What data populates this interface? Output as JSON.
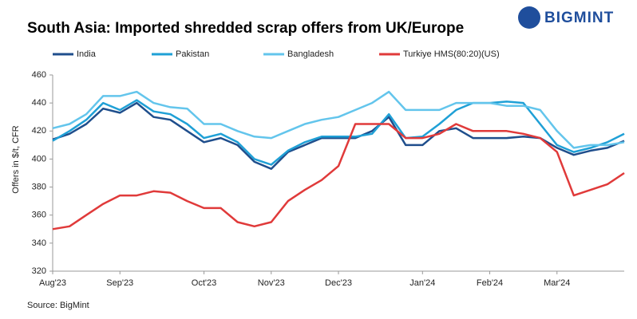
{
  "chart_data": {
    "type": "line",
    "title": "South Asia: Imported shredded scrap offers from UK/Europe",
    "logo": "BIGMINT",
    "y_label": "Offers in $/t, CFR",
    "source": "Source: BigMint",
    "categories": [
      "Aug'23",
      null,
      null,
      null,
      "Sep'23",
      null,
      null,
      null,
      null,
      "Oct'23",
      null,
      null,
      null,
      "Nov'23",
      null,
      null,
      null,
      "Dec'23",
      null,
      null,
      null,
      null,
      "Jan'24",
      null,
      null,
      null,
      "Feb'24",
      null,
      null,
      null,
      "Mar'24",
      null,
      null,
      null,
      null
    ],
    "series": [
      {
        "name": "India",
        "color": "#1f4e8c",
        "values": [
          414,
          418,
          425,
          436,
          433,
          440,
          430,
          428,
          420,
          412,
          415,
          410,
          398,
          393,
          405,
          410,
          415,
          415,
          415,
          420,
          430,
          410,
          410,
          420,
          422,
          415,
          415,
          415,
          416,
          415,
          408,
          403,
          406,
          408,
          413
        ]
      },
      {
        "name": "Pakistan",
        "color": "#1fa0d6",
        "values": [
          413,
          420,
          428,
          440,
          435,
          442,
          434,
          432,
          425,
          415,
          418,
          412,
          400,
          396,
          406,
          412,
          416,
          416,
          416,
          418,
          432,
          415,
          416,
          425,
          435,
          440,
          440,
          441,
          440,
          425,
          410,
          405,
          408,
          412,
          418
        ]
      },
      {
        "name": "Bangladesh",
        "color": "#63c5ec",
        "values": [
          422,
          425,
          432,
          445,
          445,
          448,
          440,
          437,
          436,
          425,
          425,
          420,
          416,
          415,
          420,
          425,
          428,
          430,
          435,
          440,
          448,
          435,
          435,
          435,
          440,
          440,
          440,
          438,
          438,
          435,
          420,
          408,
          410,
          410,
          412
        ]
      },
      {
        "name": "Turkiye HMS(80:20)(US)",
        "color": "#e03a3a",
        "values": [
          350,
          352,
          360,
          368,
          374,
          374,
          377,
          376,
          370,
          365,
          365,
          355,
          352,
          355,
          370,
          378,
          385,
          395,
          425,
          425,
          425,
          415,
          415,
          418,
          425,
          420,
          420,
          420,
          418,
          415,
          405,
          374,
          378,
          382,
          390
        ]
      }
    ],
    "ylim": [
      320,
      460
    ],
    "yticks": [
      320,
      340,
      360,
      380,
      400,
      420,
      440,
      460
    ],
    "grid": false,
    "legend": "top"
  }
}
